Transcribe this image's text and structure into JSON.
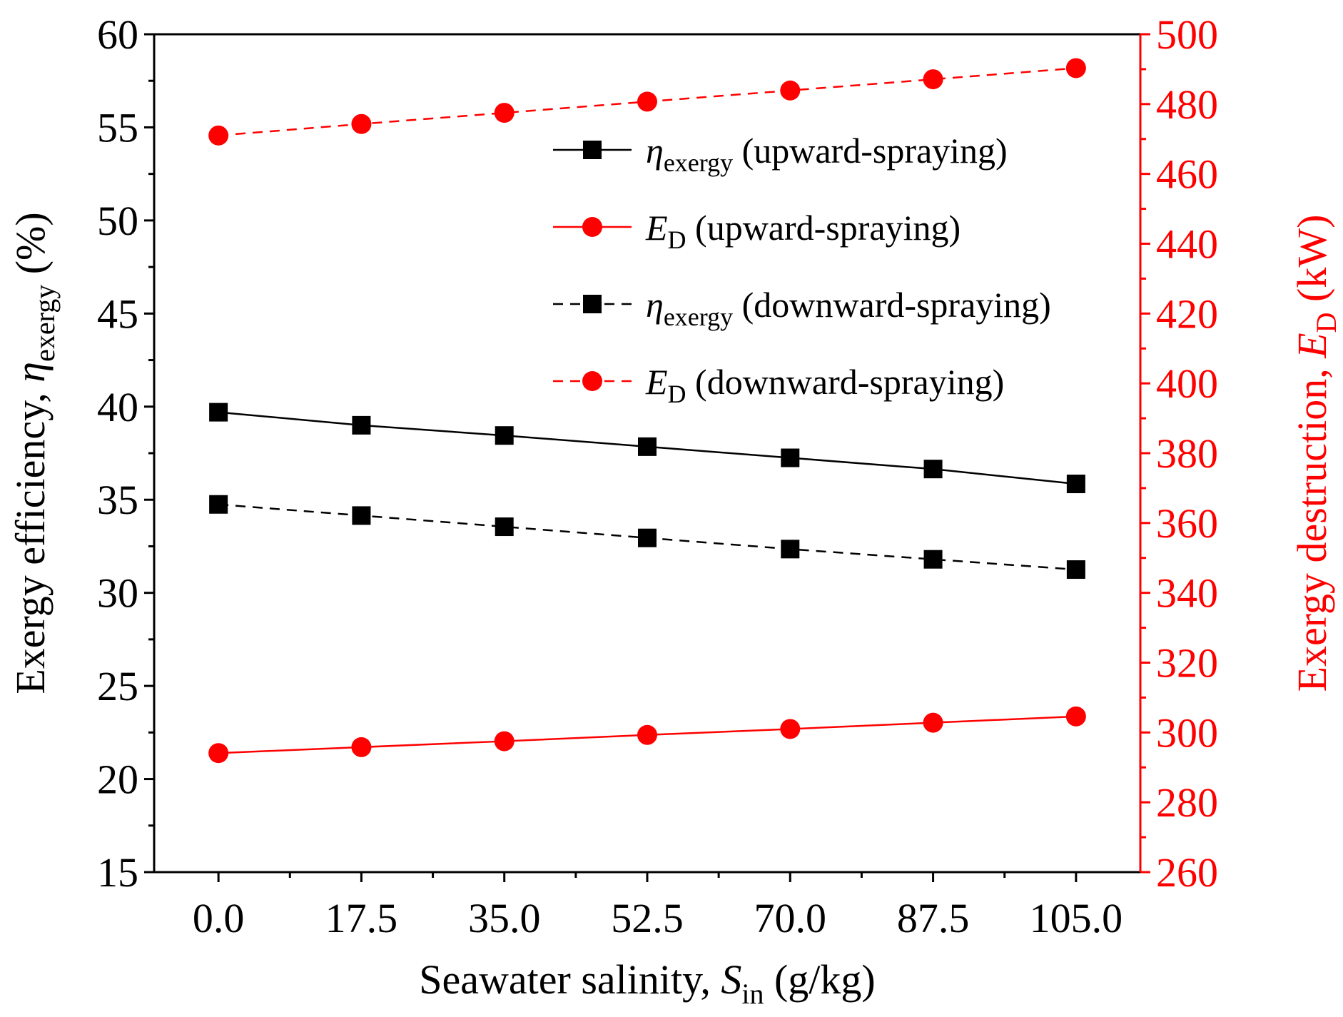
{
  "chart_data": {
    "type": "line",
    "x": [
      0.0,
      17.5,
      35.0,
      52.5,
      70.0,
      87.5,
      105.0
    ],
    "x_tick_labels": [
      "0.0",
      "17.5",
      "35.0",
      "52.5",
      "70.0",
      "87.5",
      "105.0"
    ],
    "xlim": [
      -7.875,
      112.875
    ],
    "xlabel": {
      "text": "Seawater salinity, ",
      "var": "S",
      "sub": "in",
      "unit": " (g/kg)"
    },
    "y_left": {
      "label": {
        "text": "Exergy efficiency, ",
        "var": "η",
        "sub": "exergy",
        "unit": " (%)"
      },
      "lim": [
        15,
        60
      ],
      "ticks": [
        15,
        20,
        25,
        30,
        35,
        40,
        45,
        50,
        55,
        60
      ],
      "color": "#000000"
    },
    "y_right": {
      "label": {
        "text": "Exergy destruction, ",
        "var": "E",
        "sub": "D",
        "unit": " (kW)"
      },
      "lim": [
        260,
        500
      ],
      "ticks": [
        260,
        280,
        300,
        320,
        340,
        360,
        380,
        400,
        420,
        440,
        460,
        480,
        500
      ],
      "color": "#ff0000"
    },
    "series": [
      {
        "name": "η_exergy (upward-spraying)",
        "legend_var": "η",
        "legend_sub": "exergy",
        "legend_rest": " (upward-spraying)",
        "axis": "left",
        "marker": "square",
        "dash": "solid",
        "color": "#000000",
        "values": [
          39.7,
          39.0,
          38.45,
          37.85,
          37.25,
          36.65,
          35.85
        ]
      },
      {
        "name": "E_D (upward-spraying)",
        "legend_var": "E",
        "legend_sub": "D",
        "legend_rest": " (upward-spraying)",
        "axis": "right",
        "marker": "circle",
        "dash": "solid",
        "color": "#ff0000",
        "values": [
          294.1,
          295.8,
          297.5,
          299.3,
          301.0,
          302.8,
          304.6
        ]
      },
      {
        "name": "η_exergy (downward-spraying)",
        "legend_var": "η",
        "legend_sub": "exergy",
        "legend_rest": " (downward-spraying)",
        "axis": "left",
        "marker": "square",
        "dash": "dashed",
        "color": "#000000",
        "values": [
          34.75,
          34.15,
          33.55,
          32.95,
          32.35,
          31.8,
          31.25
        ]
      },
      {
        "name": "E_D (downward-spraying)",
        "legend_var": "E",
        "legend_sub": "D",
        "legend_rest": " (downward-spraying)",
        "axis": "right",
        "marker": "circle",
        "dash": "dashed",
        "color": "#ff0000",
        "values": [
          471.0,
          474.3,
          477.5,
          480.7,
          483.9,
          487.1,
          490.3
        ]
      }
    ],
    "legend_position": "top-right",
    "grid": false
  }
}
